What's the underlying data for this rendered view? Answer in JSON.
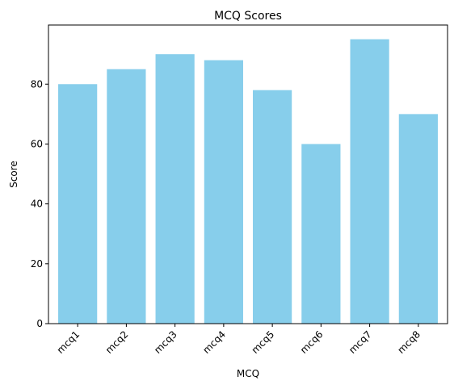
{
  "chart_data": {
    "type": "bar",
    "title": "MCQ Scores",
    "xlabel": "MCQ",
    "ylabel": "Score",
    "categories": [
      "mcq1",
      "mcq2",
      "mcq3",
      "mcq4",
      "mcq5",
      "mcq6",
      "mcq7",
      "mcq8"
    ],
    "values": [
      80,
      85,
      90,
      88,
      78,
      60,
      95,
      70
    ],
    "ylim": [
      0,
      99.75
    ],
    "yticks": [
      0,
      20,
      40,
      60,
      80
    ],
    "grid": false,
    "legend": "none",
    "bar_color": "#87ceeb",
    "x_tick_rotation": 45
  }
}
